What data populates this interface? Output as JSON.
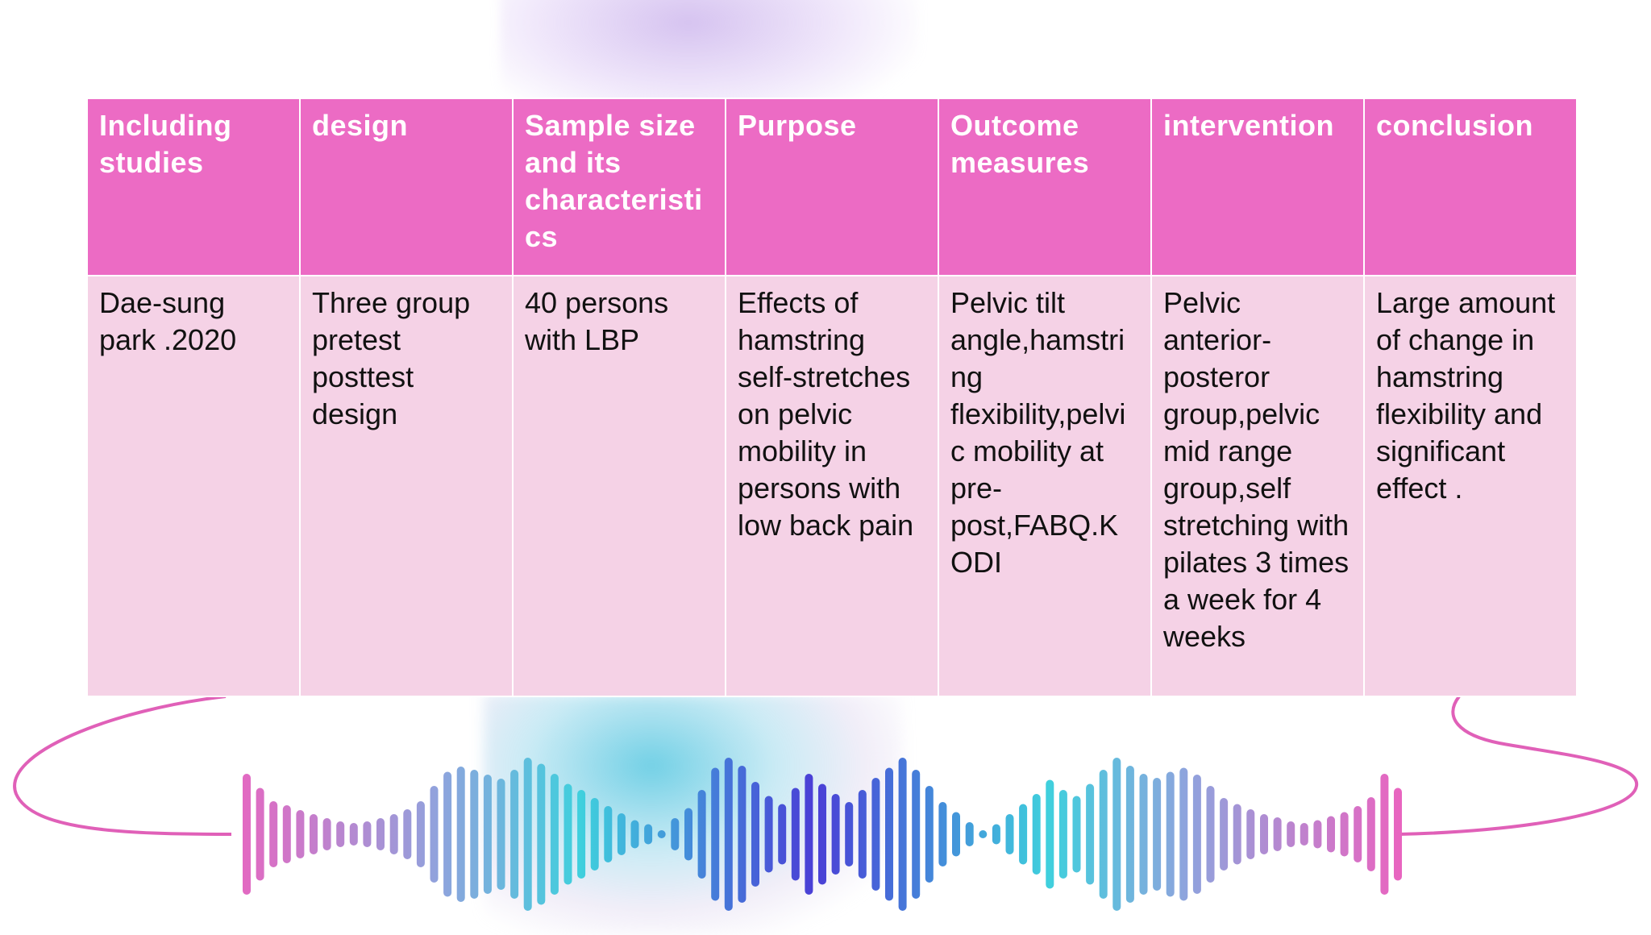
{
  "table": {
    "headers": [
      "Including studies",
      "design",
      "Sample size and its characteristi cs",
      "Purpose",
      "Outcome measures",
      "intervention",
      "conclusion"
    ],
    "rows": [
      [
        "Dae-sung park .2020",
        "Three group pretest posttest design",
        "40 persons with LBP",
        "Effects of hamstring self-stretches on pelvic mobility in persons with low back pain",
        "Pelvic tilt angle,hamstri ng flexibility,pelvi c mobility at pre- post,FABQ.K ODI",
        "Pelvic anterior- posteror group,pelvic mid range group,self stretching with pilates 3 times a week for 4 weeks",
        "Large amount of change in hamstring flexibility and significant effect ."
      ]
    ]
  },
  "colors": {
    "header_bg": "#ec6bc4",
    "body_bg": "#f5d0e5",
    "cord": "#e060b8",
    "wave_stops": [
      "#e865c0",
      "#8fa3dd",
      "#3fd0dd",
      "#4a3ed6",
      "#3fd0dd",
      "#8fa3dd",
      "#e865c0"
    ]
  },
  "decoration": {
    "icon": "sound-wave-icon"
  }
}
